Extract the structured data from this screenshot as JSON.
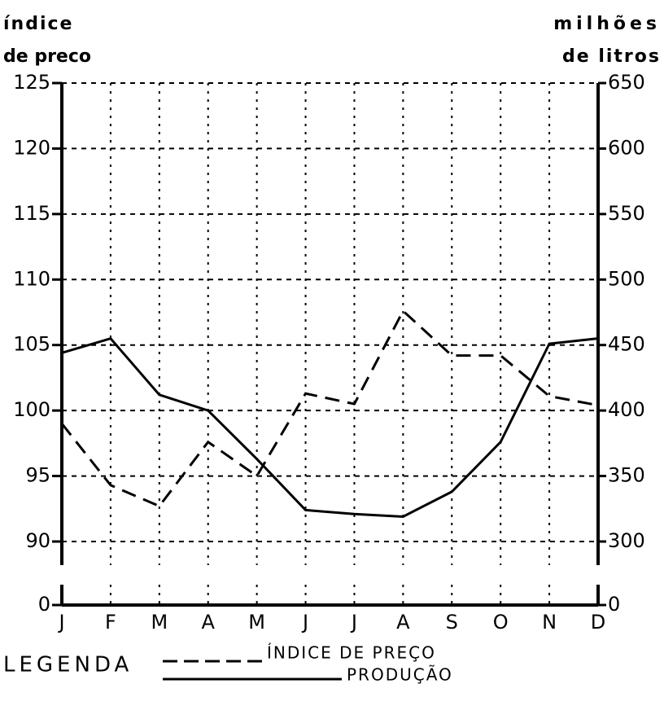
{
  "chart_data": {
    "type": "line",
    "y_label_top": "índice",
    "y_label_bottom": "de preco",
    "y2_label_top": "milhões",
    "y2_label_bottom": "de litros",
    "legend_title": "LEGENDA",
    "categories": [
      "J",
      "F",
      "M",
      "A",
      "M",
      "J",
      "J",
      "A",
      "S",
      "O",
      "N",
      "D"
    ],
    "series": [
      {
        "name": "ÍNDICE DE PREÇO",
        "color": "#000000",
        "line_style": "dashed",
        "axis": "y",
        "values": [
          99.0,
          94.3,
          92.7,
          97.6,
          95.0,
          101.3,
          100.5,
          107.6,
          104.2,
          104.2,
          101.1,
          100.4
        ]
      },
      {
        "name": "PRODUÇÃO",
        "color": "#000000",
        "line_style": "solid",
        "axis": "y2",
        "values": [
          444,
          455,
          412,
          400,
          363,
          324,
          321,
          319,
          338,
          376,
          451,
          455
        ]
      }
    ],
    "ylim": [
      0,
      125
    ],
    "yticks": [
      0,
      90,
      95,
      100,
      105,
      110,
      115,
      120,
      125
    ],
    "y2lim": [
      0,
      650
    ],
    "y2ticks": [
      0,
      300,
      350,
      400,
      450,
      500,
      550,
      600,
      650
    ],
    "broken_axis": true,
    "grid": true
  }
}
